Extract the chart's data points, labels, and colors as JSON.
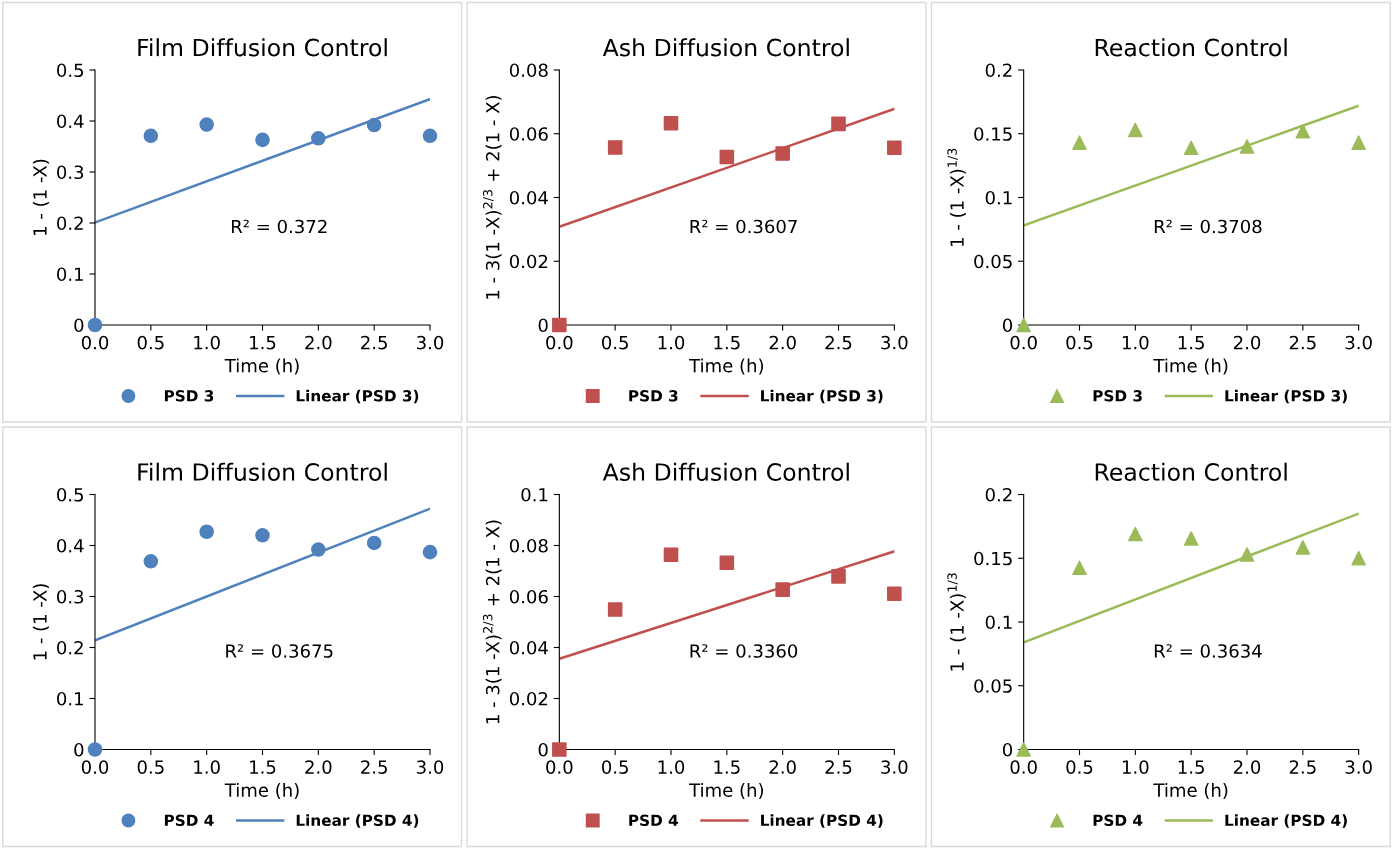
{
  "chart_data": [
    {
      "type": "scatter",
      "title": "Film Diffusion Control",
      "xlabel": "Time (h)",
      "ylabel": "1 - (1 -X)",
      "xlim": [
        0,
        3
      ],
      "xticks": [
        {
          "value": 0,
          "label": "0.0"
        },
        {
          "value": 0.5,
          "label": "0.5"
        },
        {
          "value": 1,
          "label": "1.0"
        },
        {
          "value": 1.5,
          "label": "1.5"
        },
        {
          "value": 2,
          "label": "2.0"
        },
        {
          "value": 2.5,
          "label": "2.5"
        },
        {
          "value": 3,
          "label": "3.0"
        }
      ],
      "ylim": [
        0,
        0.5
      ],
      "yticks": [
        0,
        0.1,
        0.2,
        0.3,
        0.4,
        0.5
      ],
      "grid": false,
      "legend": "bottom",
      "annotations": [
        "R² = 0.372"
      ],
      "series": [
        {
          "name": "PSD 3",
          "marker": "circle",
          "color": "#4f81bd",
          "x": [
            0,
            0.5,
            1,
            1.5,
            2,
            2.5,
            3
          ],
          "values": [
            0,
            0.371,
            0.393,
            0.363,
            0.366,
            0.392,
            0.371
          ]
        },
        {
          "name": "Linear (PSD 3)",
          "type": "line",
          "color": "#4f81bd",
          "x": [
            0,
            3
          ],
          "values": [
            0.201,
            0.443
          ]
        }
      ]
    },
    {
      "type": "scatter",
      "title": "Ash Diffusion Control",
      "xlabel": "Time (h)",
      "ylabel": "1 - 3(1 -X)$^{2/3}$ + 2(1 - X)",
      "xlim": [
        0,
        3
      ],
      "xticks": [
        {
          "value": 0,
          "label": "0.0"
        },
        {
          "value": 0.5,
          "label": "0.5"
        },
        {
          "value": 1,
          "label": "1.0"
        },
        {
          "value": 1.5,
          "label": "1.5"
        },
        {
          "value": 2,
          "label": "2.0"
        },
        {
          "value": 2.5,
          "label": "2.5"
        },
        {
          "value": 3,
          "label": "3.0"
        }
      ],
      "ylim": [
        0,
        0.08
      ],
      "yticks": [
        0,
        0.02,
        0.04,
        0.06,
        0.08
      ],
      "grid": false,
      "legend": "bottom",
      "annotations": [
        "R² = 0.3607"
      ],
      "series": [
        {
          "name": "PSD 3",
          "marker": "square",
          "color": "#c0504d",
          "x": [
            0,
            0.5,
            1,
            1.5,
            2,
            2.5,
            3
          ],
          "values": [
            0,
            0.0557,
            0.0633,
            0.0527,
            0.0538,
            0.0631,
            0.0556
          ]
        },
        {
          "name": "Linear (PSD 3)",
          "type": "line",
          "color": "#c0504d",
          "x": [
            0,
            3
          ],
          "values": [
            0.0308,
            0.0678
          ]
        }
      ]
    },
    {
      "type": "scatter",
      "title": "Reaction Control",
      "xlabel": "Time (h)",
      "ylabel": "1 - (1 -X)$^{1/3}$",
      "xlim": [
        0,
        3
      ],
      "xticks": [
        {
          "value": 0,
          "label": "0.0"
        },
        {
          "value": 0.5,
          "label": "0.5"
        },
        {
          "value": 1,
          "label": "1.0"
        },
        {
          "value": 1.5,
          "label": "1.5"
        },
        {
          "value": 2,
          "label": "2.0"
        },
        {
          "value": 2.5,
          "label": "2.5"
        },
        {
          "value": 3,
          "label": "3.0"
        }
      ],
      "ylim": [
        0,
        0.2
      ],
      "yticks": [
        0,
        0.05,
        0.1,
        0.15,
        0.2
      ],
      "grid": false,
      "legend": "bottom",
      "annotations": [
        "R² = 0.3708"
      ],
      "series": [
        {
          "name": "PSD 3",
          "marker": "triangle",
          "color": "#9bbb59",
          "x": [
            0,
            0.5,
            1,
            1.5,
            2,
            2.5,
            3
          ],
          "values": [
            0,
            0.143,
            0.153,
            0.139,
            0.14,
            0.152,
            0.143
          ]
        },
        {
          "name": "Linear (PSD 3)",
          "type": "line",
          "color": "#9bbb59",
          "x": [
            0,
            3
          ],
          "values": [
            0.078,
            0.172
          ]
        }
      ]
    },
    {
      "type": "scatter",
      "title": "Film Diffusion Control",
      "xlabel": "Time (h)",
      "ylabel": "1 - (1 -X)",
      "xlim": [
        0,
        3
      ],
      "xticks": [
        {
          "value": 0,
          "label": "0.0"
        },
        {
          "value": 0.5,
          "label": "0.5"
        },
        {
          "value": 1,
          "label": "1.0"
        },
        {
          "value": 1.5,
          "label": "1.5"
        },
        {
          "value": 2,
          "label": "2.0"
        },
        {
          "value": 2.5,
          "label": "2.5"
        },
        {
          "value": 3,
          "label": "3.0"
        }
      ],
      "ylim": [
        0,
        0.5
      ],
      "yticks": [
        0,
        0.1,
        0.2,
        0.3,
        0.4,
        0.5
      ],
      "grid": false,
      "legend": "bottom",
      "annotations": [
        "R² = 0.3675"
      ],
      "series": [
        {
          "name": "PSD 4",
          "marker": "circle",
          "color": "#4f81bd",
          "x": [
            0,
            0.5,
            1,
            1.5,
            2,
            2.5,
            3
          ],
          "values": [
            0,
            0.369,
            0.427,
            0.42,
            0.392,
            0.405,
            0.387
          ]
        },
        {
          "name": "Linear (PSD 4)",
          "type": "line",
          "color": "#4f81bd",
          "x": [
            0,
            3
          ],
          "values": [
            0.214,
            0.472
          ]
        }
      ]
    },
    {
      "type": "scatter",
      "title": "Ash Diffusion Control",
      "xlabel": "Time (h)",
      "ylabel": "1 - 3(1 -X)$^{2/3}$ + 2(1 - X)",
      "xlim": [
        0,
        3
      ],
      "xticks": [
        {
          "value": 0,
          "label": "0.0"
        },
        {
          "value": 0.5,
          "label": "0.5"
        },
        {
          "value": 1,
          "label": "1.0"
        },
        {
          "value": 1.5,
          "label": "1.5"
        },
        {
          "value": 2,
          "label": "2.0"
        },
        {
          "value": 2.5,
          "label": "2.5"
        },
        {
          "value": 3,
          "label": "3.0"
        }
      ],
      "ylim": [
        0,
        0.1
      ],
      "yticks": [
        0,
        0.02,
        0.04,
        0.06,
        0.08,
        0.1
      ],
      "grid": false,
      "legend": "bottom",
      "annotations": [
        "R² = 0.3360"
      ],
      "series": [
        {
          "name": "PSD 4",
          "marker": "square",
          "color": "#c0504d",
          "x": [
            0,
            0.5,
            1,
            1.5,
            2,
            2.5,
            3
          ],
          "values": [
            0,
            0.0549,
            0.0764,
            0.0732,
            0.0627,
            0.0679,
            0.0611
          ]
        },
        {
          "name": "Linear (PSD 4)",
          "type": "line",
          "color": "#c0504d",
          "x": [
            0,
            3
          ],
          "values": [
            0.0356,
            0.0777
          ]
        }
      ]
    },
    {
      "type": "scatter",
      "title": "Reaction Control",
      "xlabel": "Time (h)",
      "ylabel": "1 - (1 -X)$^{1/3}$",
      "xlim": [
        0,
        3
      ],
      "xticks": [
        {
          "value": 0,
          "label": "0.0"
        },
        {
          "value": 0.5,
          "label": "0.5"
        },
        {
          "value": 1,
          "label": "1.0"
        },
        {
          "value": 1.5,
          "label": "1.5"
        },
        {
          "value": 2,
          "label": "2.0"
        },
        {
          "value": 2.5,
          "label": "2.5"
        },
        {
          "value": 3,
          "label": "3.0"
        }
      ],
      "ylim": [
        0,
        0.2
      ],
      "yticks": [
        0,
        0.05,
        0.1,
        0.15,
        0.2
      ],
      "grid": false,
      "legend": "bottom",
      "annotations": [
        "R² = 0.3634"
      ],
      "series": [
        {
          "name": "PSD 4",
          "marker": "triangle",
          "color": "#9bbb59",
          "x": [
            0,
            0.5,
            1,
            1.5,
            2,
            2.5,
            3
          ],
          "values": [
            0,
            0.1425,
            0.169,
            0.1655,
            0.153,
            0.1585,
            0.15
          ]
        },
        {
          "name": "Linear (PSD 4)",
          "type": "line",
          "color": "#9bbb59",
          "x": [
            0,
            3
          ],
          "values": [
            0.084,
            0.185
          ]
        }
      ]
    }
  ]
}
